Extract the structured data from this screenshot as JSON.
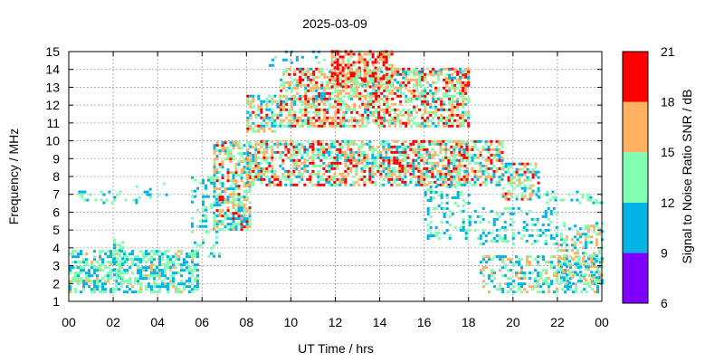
{
  "chart_data": {
    "type": "heatmap",
    "title": "2025-03-09",
    "xlabel": "UT Time / hrs",
    "ylabel": "Frequency / MHz",
    "colorbar_label": "Signal to Noise Ratio SNR / dB",
    "xlim": [
      0,
      24
    ],
    "ylim": [
      1,
      15
    ],
    "x_ticks": [
      "00",
      "02",
      "04",
      "06",
      "08",
      "10",
      "12",
      "14",
      "16",
      "18",
      "20",
      "22",
      "00"
    ],
    "y_ticks": [
      "1",
      "2",
      "3",
      "4",
      "5",
      "6",
      "7",
      "8",
      "9",
      "10",
      "11",
      "12",
      "13",
      "14",
      "15"
    ],
    "grid": true,
    "color_scale": [
      {
        "range": [
          6,
          9
        ],
        "color": "#8000ff"
      },
      {
        "range": [
          9,
          12
        ],
        "color": "#00b4e6"
      },
      {
        "range": [
          12,
          15
        ],
        "color": "#80ffb0"
      },
      {
        "range": [
          15,
          18
        ],
        "color": "#ffb060"
      },
      {
        "range": [
          18,
          21
        ],
        "color": "#ff0000"
      }
    ],
    "colorbar_ticks": [
      "6",
      "9",
      "12",
      "15",
      "18",
      "21"
    ],
    "regions": [
      {
        "t": [
          0.0,
          5.8
        ],
        "f": [
          1.5,
          3.9
        ],
        "density": 0.55,
        "snr": [
          9,
          13,
          15.5
        ]
      },
      {
        "t": [
          2.0,
          2.4
        ],
        "f": [
          2.0,
          4.5
        ],
        "density": 0.5,
        "snr": [
          9,
          13,
          15
        ]
      },
      {
        "t": [
          0.3,
          3.0
        ],
        "f": [
          6.5,
          7.2
        ],
        "density": 0.2,
        "snr": [
          9,
          12,
          14
        ]
      },
      {
        "t": [
          3.0,
          4.5
        ],
        "f": [
          6.8,
          7.6
        ],
        "density": 0.2,
        "snr": [
          9,
          12,
          14
        ]
      },
      {
        "t": [
          5.5,
          6.8
        ],
        "f": [
          3.5,
          8.0
        ],
        "density": 0.25,
        "snr": [
          9,
          12,
          15
        ]
      },
      {
        "t": [
          6.5,
          8.2
        ],
        "f": [
          5.0,
          10.0
        ],
        "density": 0.6,
        "snr": [
          10,
          14,
          19
        ]
      },
      {
        "t": [
          8.0,
          18.0
        ],
        "f": [
          7.5,
          10.0
        ],
        "density": 0.6,
        "snr": [
          10,
          15,
          20
        ]
      },
      {
        "t": [
          8.0,
          9.5
        ],
        "f": [
          10.5,
          12.5
        ],
        "density": 0.5,
        "snr": [
          10,
          14,
          19
        ]
      },
      {
        "t": [
          9.5,
          18.0
        ],
        "f": [
          10.8,
          14.0
        ],
        "density": 0.6,
        "snr": [
          11,
          16,
          20
        ]
      },
      {
        "t": [
          11.8,
          14.6
        ],
        "f": [
          13.0,
          15.0
        ],
        "density": 0.6,
        "snr": [
          12,
          17,
          21
        ]
      },
      {
        "t": [
          15.0,
          18.0
        ],
        "f": [
          13.5,
          14.0
        ],
        "density": 0.3,
        "snr": [
          10,
          13,
          16
        ]
      },
      {
        "t": [
          17.5,
          19.5
        ],
        "f": [
          7.5,
          10.0
        ],
        "density": 0.55,
        "snr": [
          10,
          15,
          20
        ]
      },
      {
        "t": [
          19.5,
          21.2
        ],
        "f": [
          6.7,
          8.8
        ],
        "density": 0.5,
        "snr": [
          10,
          14,
          19
        ]
      },
      {
        "t": [
          21.0,
          24.0
        ],
        "f": [
          6.5,
          7.2
        ],
        "density": 0.3,
        "snr": [
          9,
          12,
          15
        ]
      },
      {
        "t": [
          16.0,
          18.0
        ],
        "f": [
          4.5,
          7.5
        ],
        "density": 0.3,
        "snr": [
          9,
          12,
          15
        ]
      },
      {
        "t": [
          18.0,
          22.0
        ],
        "f": [
          4.2,
          6.3
        ],
        "density": 0.25,
        "snr": [
          9,
          12,
          15
        ]
      },
      {
        "t": [
          18.5,
          24.0
        ],
        "f": [
          1.5,
          3.6
        ],
        "density": 0.4,
        "snr": [
          9,
          13,
          17
        ]
      },
      {
        "t": [
          22.0,
          24.0
        ],
        "f": [
          2.0,
          5.5
        ],
        "density": 0.4,
        "snr": [
          9,
          13,
          17
        ]
      },
      {
        "t": [
          9.0,
          12.0
        ],
        "f": [
          14.2,
          15.0
        ],
        "density": 0.1,
        "snr": [
          9,
          11,
          13
        ]
      }
    ]
  }
}
